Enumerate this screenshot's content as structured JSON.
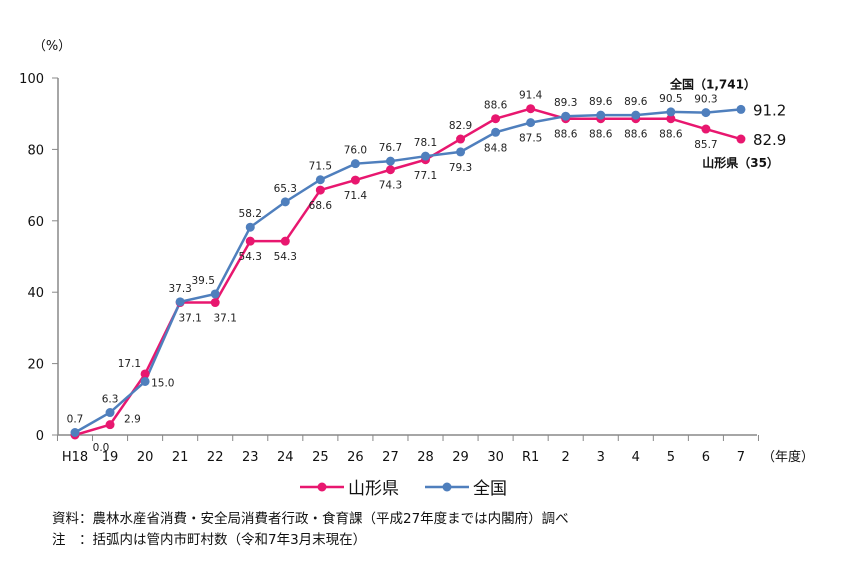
{
  "chart_data": {
    "type": "line",
    "unit_label": "（%）",
    "x_unit_label": "（年度）",
    "categories": [
      "H18",
      "19",
      "20",
      "21",
      "22",
      "23",
      "24",
      "25",
      "26",
      "27",
      "28",
      "29",
      "30",
      "R1",
      "2",
      "3",
      "4",
      "5",
      "6",
      "7"
    ],
    "ylim": [
      0,
      100
    ],
    "yticks": [
      0,
      20,
      40,
      60,
      80,
      100
    ],
    "grid": false,
    "legend_placement": "bottom",
    "series": [
      {
        "name": "山形県",
        "color": "#e8176f",
        "values": [
          0.0,
          2.9,
          17.1,
          37.1,
          37.1,
          54.3,
          54.3,
          68.6,
          71.4,
          74.3,
          77.1,
          82.9,
          88.6,
          91.4,
          88.6,
          88.6,
          88.6,
          88.6,
          85.7,
          82.9
        ],
        "end_annotation": "山形県（35）"
      },
      {
        "name": "全国",
        "color": "#4f7fbd",
        "values": [
          0.7,
          6.3,
          15.0,
          37.3,
          39.5,
          58.2,
          65.3,
          71.5,
          76.0,
          76.7,
          78.1,
          79.3,
          84.8,
          87.5,
          89.3,
          89.6,
          89.6,
          90.5,
          90.3,
          91.2
        ],
        "end_annotation": "全国（1,741）"
      }
    ]
  },
  "notes": {
    "source": "資料：農林水産省消費・安全局消費者行政・食育課（平成27年度までは内閣府）調べ",
    "note": "注　：括弧内は管内市町村数（令和7年3月末現在）"
  }
}
